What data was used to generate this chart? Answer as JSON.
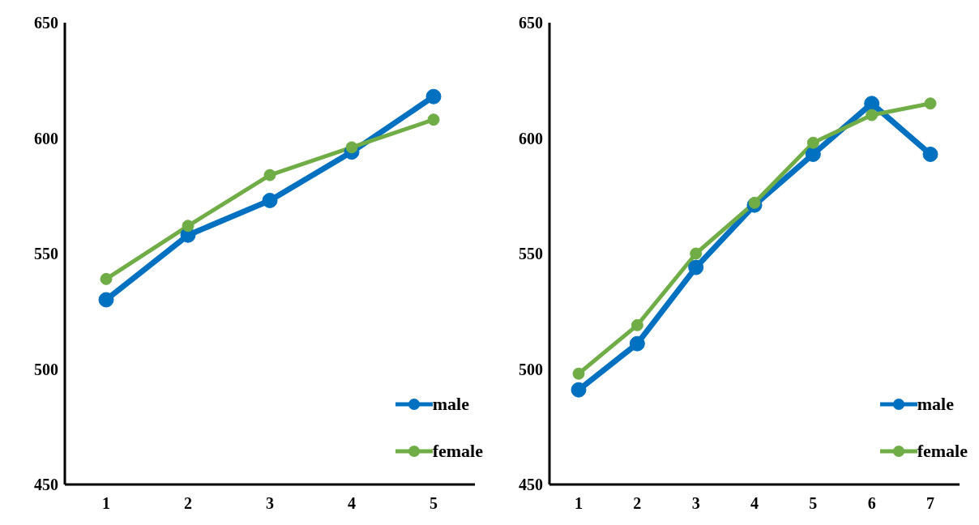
{
  "chart_data": [
    {
      "type": "line",
      "categories": [
        "1",
        "2",
        "3",
        "4",
        "5"
      ],
      "series": [
        {
          "name": "male",
          "color": "#0070c0",
          "values": [
            530,
            558,
            573,
            594,
            618
          ]
        },
        {
          "name": "female",
          "color": "#70ad47",
          "values": [
            539,
            562,
            584,
            596,
            608
          ]
        }
      ],
      "ylim": [
        450,
        650
      ],
      "yticks": [
        450,
        500,
        550,
        600,
        650
      ],
      "grid": false,
      "legend": "bottom right",
      "marker": "circle",
      "line_style": "solid"
    },
    {
      "type": "line",
      "categories": [
        "1",
        "2",
        "3",
        "4",
        "5",
        "6",
        "7"
      ],
      "series": [
        {
          "name": "male",
          "color": "#0070c0",
          "values": [
            491,
            511,
            544,
            571,
            593,
            615,
            593
          ]
        },
        {
          "name": "female",
          "color": "#70ad47",
          "values": [
            498,
            519,
            550,
            572,
            598,
            610,
            615
          ]
        }
      ],
      "ylim": [
        450,
        650
      ],
      "yticks": [
        450,
        500,
        550,
        600,
        650
      ],
      "grid": false,
      "legend": "bottom right",
      "marker": "circle",
      "line_style": "solid"
    }
  ]
}
